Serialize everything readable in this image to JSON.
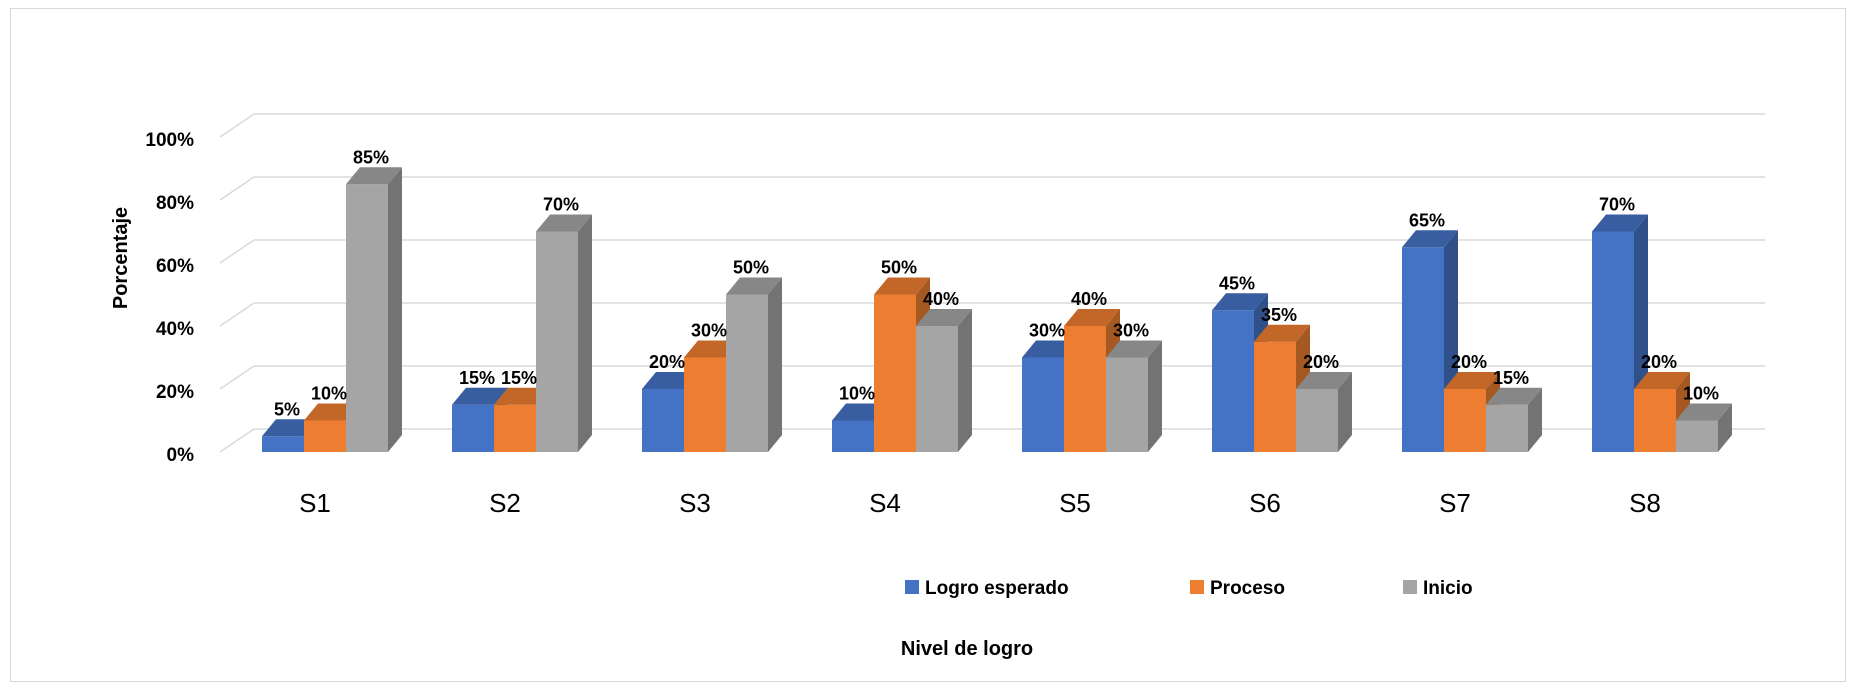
{
  "chart_data": {
    "type": "bar",
    "categories": [
      "S1",
      "S2",
      "S3",
      "S4",
      "S5",
      "S6",
      "S7",
      "S8"
    ],
    "series": [
      {
        "name": "Logro esperado",
        "color": "#4472C4",
        "values": [
          5,
          15,
          20,
          10,
          30,
          45,
          65,
          70
        ]
      },
      {
        "name": "Proceso",
        "color": "#ED7D31",
        "values": [
          10,
          15,
          30,
          50,
          40,
          35,
          20,
          20
        ]
      },
      {
        "name": "Inicio",
        "color": "#A5A5A5",
        "values": [
          85,
          70,
          50,
          40,
          30,
          20,
          15,
          10
        ]
      }
    ],
    "data_label_suffix": "%",
    "yticks": [
      "0%",
      "20%",
      "40%",
      "60%",
      "80%",
      "100%"
    ],
    "ylim": [
      0,
      100
    ],
    "ylabel": "Porcentaje",
    "xlabel": "Nivel de logro",
    "legend_position": "bottom",
    "grid": true,
    "style": "3d-clustered-column"
  }
}
